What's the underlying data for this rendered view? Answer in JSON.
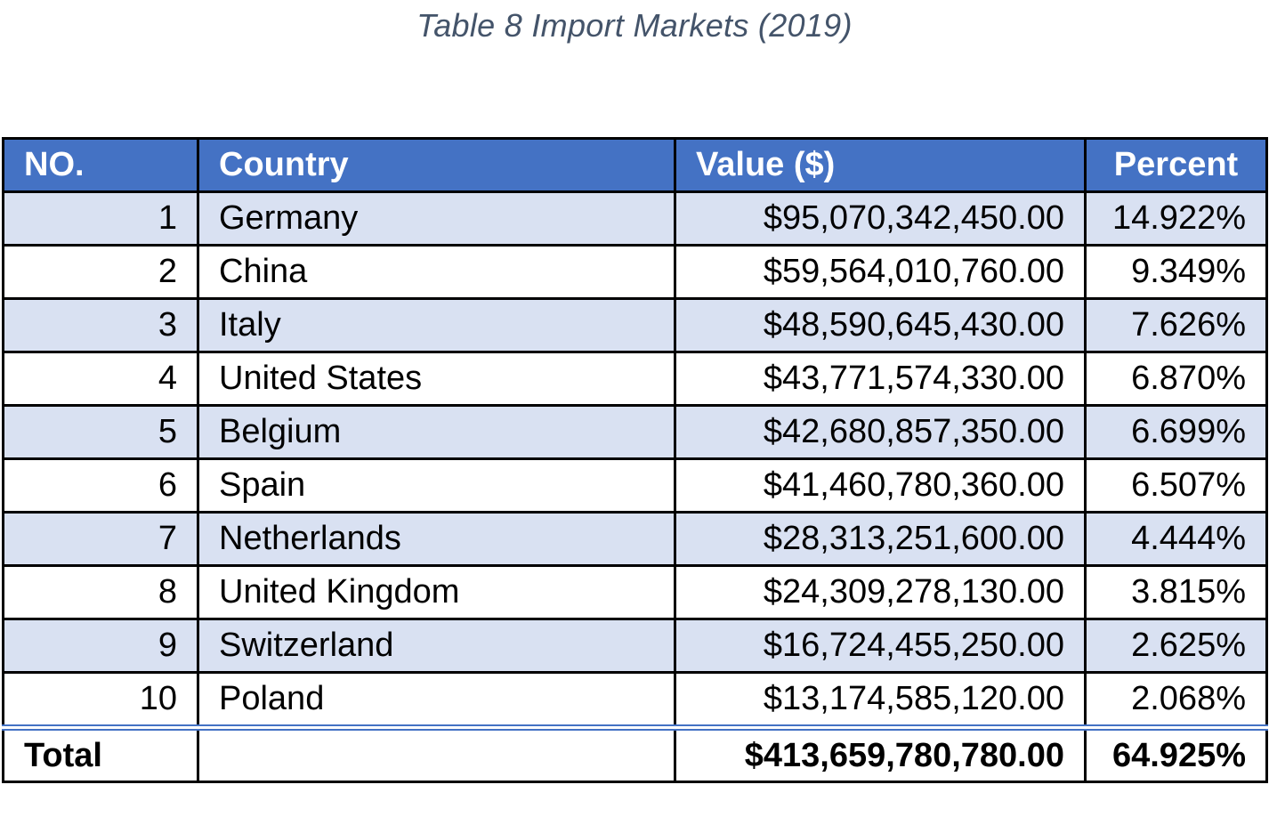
{
  "caption": "Table 8 Import Markets (2019)",
  "colors": {
    "header_bg": "#4472C4",
    "band_bg": "#D9E1F2",
    "caption_text": "#44546A"
  },
  "table": {
    "headers": [
      "NO.",
      "Country",
      "Value ($)",
      "Percent"
    ],
    "rows": [
      {
        "no": "1",
        "country": "Germany",
        "value": "$95,070,342,450.00",
        "percent": "14.922%"
      },
      {
        "no": "2",
        "country": "China",
        "value": "$59,564,010,760.00",
        "percent": "9.349%"
      },
      {
        "no": "3",
        "country": "Italy",
        "value": "$48,590,645,430.00",
        "percent": "7.626%"
      },
      {
        "no": "4",
        "country": "United States",
        "value": "$43,771,574,330.00",
        "percent": "6.870%"
      },
      {
        "no": "5",
        "country": "Belgium",
        "value": "$42,680,857,350.00",
        "percent": "6.699%"
      },
      {
        "no": "6",
        "country": "Spain",
        "value": "$41,460,780,360.00",
        "percent": "6.507%"
      },
      {
        "no": "7",
        "country": "Netherlands",
        "value": "$28,313,251,600.00",
        "percent": "4.444%"
      },
      {
        "no": "8",
        "country": "United Kingdom",
        "value": "$24,309,278,130.00",
        "percent": "3.815%"
      },
      {
        "no": "9",
        "country": "Switzerland",
        "value": "$16,724,455,250.00",
        "percent": "2.625%"
      },
      {
        "no": "10",
        "country": "Poland",
        "value": "$13,174,585,120.00",
        "percent": "2.068%"
      }
    ],
    "total": {
      "label": "Total",
      "country": "",
      "value": "$413,659,780,780.00",
      "percent": "64.925%"
    }
  }
}
